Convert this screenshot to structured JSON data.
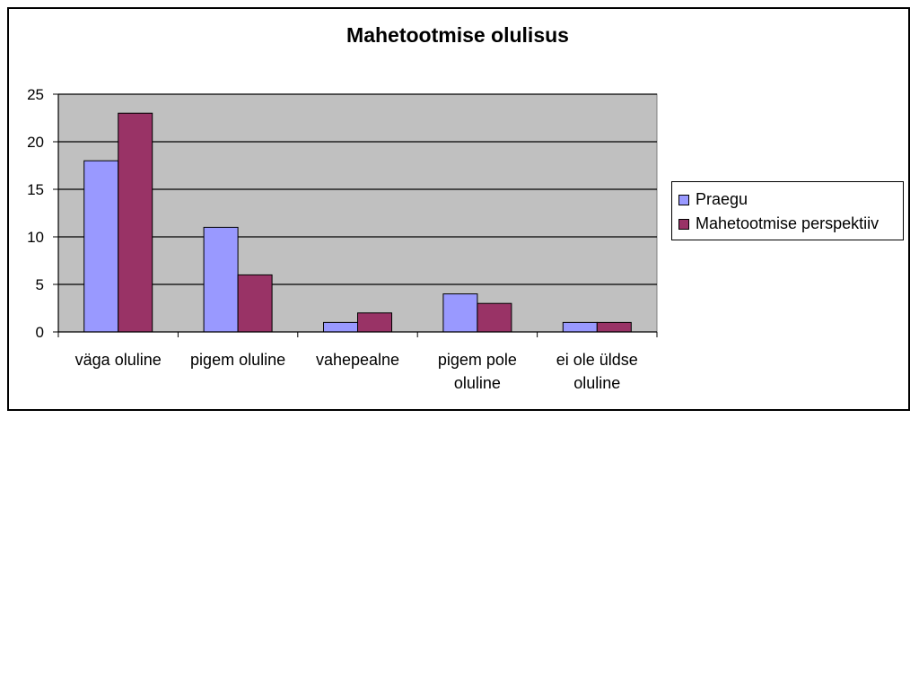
{
  "chart_data": {
    "type": "bar",
    "title": "Mahetootmise olulisus",
    "xlabel": "",
    "ylabel": "",
    "categories": [
      [
        "väga oluline"
      ],
      [
        "pigem oluline"
      ],
      [
        "vahepealne"
      ],
      [
        "pigem pole",
        "oluline"
      ],
      [
        "ei ole üldse",
        "oluline"
      ]
    ],
    "series": [
      {
        "name": "Praegu",
        "color": "#9999ff",
        "values": [
          18,
          11,
          1,
          4,
          1
        ]
      },
      {
        "name": "Mahetootmise perspektiiv",
        "color": "#993366",
        "values": [
          23,
          6,
          2,
          3,
          1
        ]
      }
    ],
    "ylim": [
      0,
      25
    ],
    "yticks": [
      0,
      5,
      10,
      15,
      20,
      25
    ],
    "grid": true,
    "plot_background": "#c0c0c0",
    "legend_position": "right"
  }
}
